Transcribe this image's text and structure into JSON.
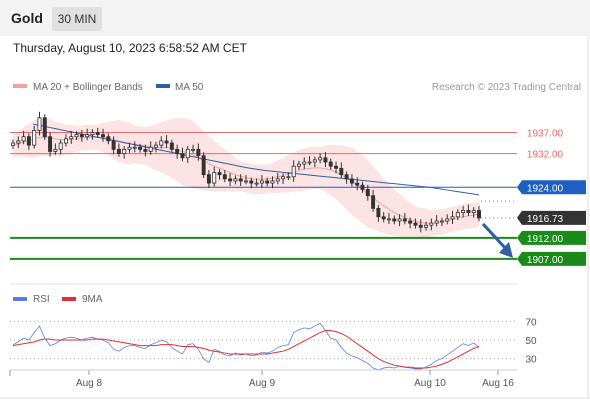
{
  "header": {
    "asset": "Gold",
    "timeframe": "30 MIN"
  },
  "datetime": "Thursday, August 10, 2023 6:58:52 AM CET",
  "legend": {
    "ma20_bb": "MA 20 + Bollinger Bands",
    "ma50": "MA 50",
    "copyright": "Research © 2023 Trading Central"
  },
  "rsi_legend": {
    "rsi": "RSI",
    "ma9": "9MA"
  },
  "colors": {
    "bollinger": "#f4a0a0",
    "bollinger_fill": "#fbd8d8",
    "ma50": "#2f5ea3",
    "resistance": "#e86a6a",
    "pivot": "#1f5fbf",
    "support": "#1a8a1a",
    "current": "#333333",
    "rsi": "#5b7fe0",
    "rsi_ma": "#e03030",
    "arrow": "#2f5ea3"
  },
  "chart_data": [
    {
      "type": "candlestick",
      "x_labels": [
        "Aug 8",
        "Aug 9",
        "Aug 10",
        "Aug 16"
      ],
      "ylim": [
        1902,
        1944
      ],
      "closes": [
        1934.5,
        1935.0,
        1936.0,
        1934.0,
        1937.5,
        1940.5,
        1936.0,
        1932.5,
        1933.0,
        1934.5,
        1935.5,
        1936.0,
        1936.5,
        1936.0,
        1936.5,
        1937.0,
        1936.5,
        1936.0,
        1935.0,
        1933.0,
        1932.0,
        1933.0,
        1933.5,
        1933.5,
        1933.0,
        1932.5,
        1933.5,
        1934.0,
        1935.0,
        1934.5,
        1933.0,
        1932.0,
        1931.0,
        1933.0,
        1933.0,
        1931.5,
        1927.0,
        1925.0,
        1927.5,
        1927.0,
        1926.0,
        1925.5,
        1926.0,
        1925.5,
        1925.5,
        1925.0,
        1925.0,
        1925.5,
        1925.0,
        1925.5,
        1926.0,
        1926.5,
        1926.5,
        1929.0,
        1929.5,
        1930.0,
        1930.0,
        1930.5,
        1931.0,
        1930.0,
        1929.0,
        1928.5,
        1927.0,
        1926.0,
        1925.0,
        1924.5,
        1923.5,
        1922.0,
        1919.0,
        1917.0,
        1916.5,
        1916.5,
        1916.0,
        1916.5,
        1916.0,
        1915.5,
        1915.0,
        1914.5,
        1915.0,
        1915.5,
        1916.0,
        1916.0,
        1916.5,
        1917.0,
        1918.0,
        1918.5,
        1918.0,
        1918.5,
        1916.73
      ],
      "ma20": [
        1934.0,
        1934.3,
        1934.7,
        1935.0,
        1935.5,
        1935.8,
        1936.0,
        1935.8,
        1935.5,
        1935.3,
        1935.3,
        1935.4,
        1935.5,
        1935.7,
        1935.8,
        1935.9,
        1935.9,
        1935.8,
        1935.6,
        1935.3,
        1935.0,
        1934.7,
        1934.4,
        1934.2,
        1934.0,
        1933.8,
        1933.6,
        1933.5,
        1933.5,
        1933.4,
        1933.2,
        1932.9,
        1932.5,
        1932.2,
        1931.7,
        1931.0,
        1930.3,
        1929.6,
        1929.0,
        1928.5,
        1928.0,
        1927.5,
        1927.0,
        1926.6,
        1926.3,
        1926.0,
        1925.9,
        1925.9,
        1926.0,
        1926.2,
        1926.5,
        1926.8,
        1927.2,
        1927.6,
        1928.0,
        1928.3,
        1928.5,
        1928.6,
        1928.6,
        1928.4,
        1928.1,
        1927.6,
        1927.0,
        1926.2,
        1925.4,
        1924.5,
        1923.5,
        1922.5,
        1921.5,
        1920.5,
        1919.6,
        1918.8,
        1918.0,
        1917.4,
        1916.8,
        1916.3,
        1915.9,
        1915.6,
        1915.5,
        1915.5,
        1915.6,
        1915.8,
        1916.1,
        1916.4,
        1916.7,
        1917.0,
        1917.2,
        1917.4,
        1917.6
      ],
      "ma50": [
        1939.0,
        1938.6,
        1938.2,
        1937.8,
        1937.4,
        1937.0,
        1936.6,
        1936.2,
        1935.8,
        1935.4,
        1935.0,
        1934.6,
        1934.2,
        1933.8,
        1933.4,
        1933.0,
        1932.6,
        1932.2,
        1931.8,
        1931.4,
        1931.0,
        1930.6,
        1930.2,
        1929.8,
        1929.4,
        1929.0,
        1928.6,
        1928.3,
        1928.0,
        1927.8,
        1927.6,
        1927.4,
        1927.2,
        1927.0,
        1926.8,
        1926.6,
        1926.4,
        1926.2,
        1926.0,
        1925.8,
        1925.6,
        1925.4,
        1925.2,
        1925.0,
        1924.8,
        1924.6,
        1924.4,
        1924.2,
        1924.0,
        1923.7,
        1923.4,
        1923.1,
        1922.8,
        1922.5,
        1922.2
      ],
      "bb_upper_offset": [
        3,
        3,
        3.5,
        4,
        4.5,
        4.5,
        4.5,
        4.5,
        4,
        4,
        3.5,
        3.5,
        3,
        3,
        3,
        3,
        3,
        3.5,
        4,
        4.5,
        5,
        5,
        5,
        4.5,
        4.5,
        4.5,
        5,
        5.5,
        6,
        6.5,
        7,
        7.5,
        8,
        8,
        8,
        7.5,
        7,
        6.5,
        6,
        5.5,
        5,
        4.5,
        4,
        3.5,
        3.5,
        3.5,
        3.5,
        3.5,
        3.5,
        3.5,
        4,
        4,
        4.5,
        4.5,
        5,
        5,
        5,
        5,
        5,
        5.5,
        6,
        6.5,
        7,
        7.5,
        8,
        8,
        8,
        8,
        7.5,
        7,
        6.5,
        6,
        5.5,
        5,
        4.5,
        4,
        3.5,
        3.5,
        3.5,
        3,
        3,
        3,
        3,
        3,
        3,
        3,
        3,
        3,
        3
      ],
      "levels": [
        {
          "value": 1937.0,
          "label": "1937.00",
          "role": "resistance"
        },
        {
          "value": 1932.0,
          "label": "1932.00",
          "role": "resistance"
        },
        {
          "value": 1924.0,
          "label": "1924.00",
          "role": "pivot"
        },
        {
          "value": 1916.73,
          "label": "1916.73",
          "role": "current"
        },
        {
          "value": 1912.0,
          "label": "1912.00",
          "role": "support"
        },
        {
          "value": 1907.0,
          "label": "1907.00",
          "role": "support"
        }
      ],
      "arrow_target": 1907.0
    },
    {
      "type": "line",
      "ylim": [
        20,
        80
      ],
      "y_ticks": [
        70,
        50,
        30
      ],
      "rsi": [
        45,
        48,
        52,
        50,
        58,
        65,
        52,
        44,
        46,
        50,
        52,
        53,
        52,
        50,
        52,
        53,
        51,
        50,
        47,
        40,
        38,
        42,
        44,
        44,
        42,
        41,
        45,
        47,
        50,
        48,
        42,
        38,
        35,
        45,
        46,
        40,
        30,
        26,
        40,
        38,
        34,
        33,
        36,
        34,
        35,
        33,
        34,
        37,
        36,
        38,
        42,
        44,
        45,
        58,
        61,
        63,
        62,
        65,
        68,
        60,
        52,
        50,
        42,
        36,
        33,
        31,
        28,
        25,
        20,
        18,
        20,
        21,
        20,
        22,
        21,
        20,
        19,
        19,
        21,
        24,
        28,
        30,
        34,
        38,
        42,
        46,
        44,
        47,
        42
      ],
      "ma9": [
        44,
        45,
        46,
        47,
        48,
        50,
        51,
        51,
        50,
        50,
        50,
        50,
        50,
        50,
        50,
        51,
        51,
        51,
        50,
        49,
        48,
        47,
        46,
        45,
        44,
        44,
        44,
        44,
        45,
        45,
        45,
        44,
        43,
        43,
        43,
        42,
        41,
        39,
        38,
        37,
        36,
        35,
        35,
        35,
        35,
        35,
        35,
        35,
        35,
        36,
        37,
        38,
        40,
        43,
        46,
        49,
        52,
        55,
        58,
        60,
        60,
        59,
        57,
        54,
        50,
        46,
        42,
        38,
        34,
        30,
        27,
        25,
        23,
        22,
        21,
        21,
        20,
        20,
        20,
        21,
        22,
        24,
        26,
        29,
        32,
        35,
        38,
        41,
        43
      ]
    }
  ]
}
